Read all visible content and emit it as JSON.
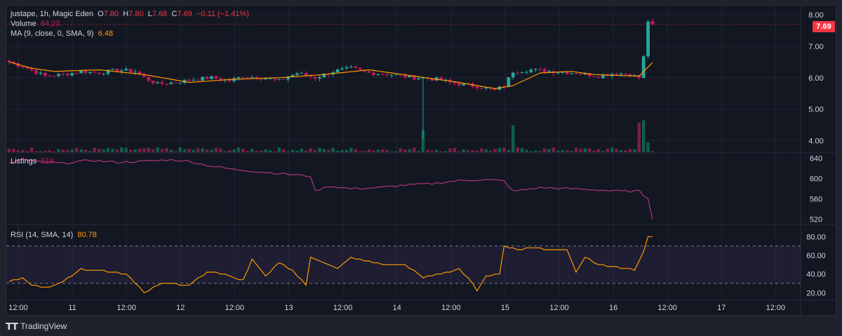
{
  "legend": {
    "symbol": "justape, 1h, Magic Eden",
    "o_label": "O",
    "o": "7.80",
    "h_label": "H",
    "h": "7.80",
    "l_label": "L",
    "l": "7.68",
    "c_label": "C",
    "c": "7.69",
    "change": "−0.11 (−1.41%)",
    "volume_label": "Volume",
    "volume": "64.23",
    "ma_label": "MA (9, close, 0, SMA, 9)",
    "ma": "6.48"
  },
  "listings_panel": {
    "label": "Listings",
    "value": "519"
  },
  "rsi_panel": {
    "label": "RSI (14, SMA, 14)",
    "value": "80.78"
  },
  "price_badge": "7.69",
  "footer": {
    "brand": "TradingView"
  },
  "colors": {
    "up": "#26a69a",
    "down": "#c2185b",
    "ma": "#ff9800",
    "listings": "#a2356e",
    "rsi": "#ff9800",
    "badge": "#f23645"
  },
  "chart_data": [
    {
      "type": "candlestick",
      "title": "justape, 1h, Magic Eden",
      "y_ticks": [
        "4.00",
        "5.00",
        "6.00",
        "7.00",
        "8.00"
      ],
      "ylim": [
        3.7,
        8.2
      ],
      "x_ticks": [
        "12:00",
        "11",
        "12:00",
        "12",
        "12:00",
        "13",
        "12:00",
        "14",
        "12:00",
        "15",
        "12:00",
        "16",
        "12:00",
        "17",
        "12:00"
      ],
      "price_anchors": [
        [
          0,
          6.5
        ],
        [
          4,
          6.3
        ],
        [
          8,
          6.05
        ],
        [
          12,
          6.1
        ],
        [
          16,
          6.2
        ],
        [
          20,
          6.15
        ],
        [
          24,
          6.25
        ],
        [
          28,
          6.2
        ],
        [
          30,
          6.0
        ],
        [
          33,
          5.8
        ],
        [
          37,
          5.85
        ],
        [
          41,
          5.95
        ],
        [
          45,
          6.0
        ],
        [
          49,
          5.9
        ],
        [
          52,
          6.05
        ],
        [
          56,
          6.0
        ],
        [
          60,
          5.9
        ],
        [
          64,
          6.15
        ],
        [
          68,
          6.0
        ],
        [
          72,
          6.2
        ],
        [
          76,
          6.3
        ],
        [
          80,
          6.15
        ],
        [
          85,
          6.1
        ],
        [
          90,
          6.0
        ],
        [
          95,
          5.95
        ],
        [
          100,
          5.8
        ],
        [
          105,
          5.7
        ],
        [
          108,
          5.6
        ],
        [
          110,
          5.75
        ],
        [
          112,
          6.2
        ],
        [
          116,
          6.25
        ],
        [
          121,
          6.2
        ],
        [
          126,
          6.15
        ],
        [
          131,
          6.05
        ],
        [
          135,
          6.15
        ],
        [
          138,
          6.1
        ],
        [
          140,
          6.0
        ],
        [
          141,
          6.65
        ],
        [
          142,
          7.8
        ]
      ],
      "ma_anchors": [
        [
          0,
          6.5
        ],
        [
          5,
          6.3
        ],
        [
          10,
          6.2
        ],
        [
          20,
          6.25
        ],
        [
          30,
          6.1
        ],
        [
          40,
          5.85
        ],
        [
          50,
          5.95
        ],
        [
          60,
          6.0
        ],
        [
          70,
          6.1
        ],
        [
          80,
          6.25
        ],
        [
          90,
          6.05
        ],
        [
          100,
          5.85
        ],
        [
          108,
          5.65
        ],
        [
          112,
          5.75
        ],
        [
          118,
          6.15
        ],
        [
          125,
          6.2
        ],
        [
          130,
          6.1
        ],
        [
          140,
          6.05
        ],
        [
          143,
          6.48
        ]
      ],
      "volume_spikes": [
        [
          92,
          9
        ],
        [
          112,
          11
        ],
        [
          140,
          12
        ],
        [
          141,
          13
        ],
        [
          142,
          4
        ]
      ],
      "ma": {
        "name": "MA (9, close, 0, SMA, 9)",
        "last": 6.48
      },
      "last": 7.69
    },
    {
      "type": "line",
      "name": "Listings",
      "y_ticks": [
        "520",
        "560",
        "600",
        "640"
      ],
      "ylim": [
        515,
        645
      ],
      "anchors": [
        [
          0,
          630
        ],
        [
          3,
          638
        ],
        [
          5,
          634
        ],
        [
          12,
          630
        ],
        [
          18,
          636
        ],
        [
          24,
          632
        ],
        [
          30,
          634
        ],
        [
          36,
          637
        ],
        [
          40,
          634
        ],
        [
          44,
          626
        ],
        [
          50,
          618
        ],
        [
          56,
          613
        ],
        [
          60,
          610
        ],
        [
          64,
          607
        ],
        [
          67,
          605
        ],
        [
          68,
          575
        ],
        [
          71,
          585
        ],
        [
          76,
          580
        ],
        [
          82,
          582
        ],
        [
          88,
          587
        ],
        [
          94,
          590
        ],
        [
          100,
          596
        ],
        [
          106,
          598
        ],
        [
          110,
          595
        ],
        [
          112,
          575
        ],
        [
          118,
          582
        ],
        [
          124,
          580
        ],
        [
          130,
          578
        ],
        [
          136,
          575
        ],
        [
          140,
          575
        ],
        [
          142,
          560
        ],
        [
          143,
          519
        ]
      ],
      "last": 519
    },
    {
      "type": "line",
      "name": "RSI (14, SMA, 14)",
      "y_ticks": [
        "20.00",
        "40.00",
        "60.00",
        "80.00"
      ],
      "ylim": [
        15,
        90
      ],
      "bands": [
        30,
        70
      ],
      "anchors": [
        [
          0,
          32
        ],
        [
          3,
          35
        ],
        [
          5,
          28
        ],
        [
          8,
          25
        ],
        [
          12,
          32
        ],
        [
          16,
          45
        ],
        [
          20,
          44
        ],
        [
          26,
          40
        ],
        [
          28,
          30
        ],
        [
          30,
          20
        ],
        [
          34,
          30
        ],
        [
          40,
          28
        ],
        [
          44,
          42
        ],
        [
          48,
          40
        ],
        [
          52,
          33
        ],
        [
          54,
          55
        ],
        [
          57,
          38
        ],
        [
          60,
          52
        ],
        [
          63,
          44
        ],
        [
          66,
          28
        ],
        [
          67,
          58
        ],
        [
          70,
          52
        ],
        [
          73,
          45
        ],
        [
          76,
          58
        ],
        [
          80,
          53
        ],
        [
          84,
          49
        ],
        [
          88,
          50
        ],
        [
          92,
          36
        ],
        [
          96,
          40
        ],
        [
          100,
          45
        ],
        [
          103,
          30
        ],
        [
          104,
          22
        ],
        [
          106,
          38
        ],
        [
          109,
          40
        ],
        [
          110,
          70
        ],
        [
          113,
          66
        ],
        [
          117,
          68
        ],
        [
          120,
          65
        ],
        [
          124,
          66
        ],
        [
          126,
          42
        ],
        [
          128,
          58
        ],
        [
          131,
          50
        ],
        [
          134,
          48
        ],
        [
          137,
          46
        ],
        [
          139,
          44
        ],
        [
          141,
          64
        ],
        [
          142,
          80
        ],
        [
          143,
          80.78
        ]
      ],
      "last": 80.78
    }
  ]
}
